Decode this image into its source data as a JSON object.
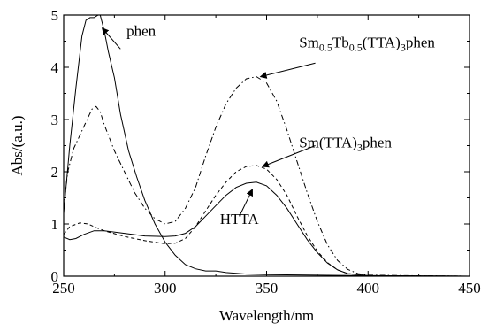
{
  "chart_data": {
    "type": "line",
    "title": "",
    "xlabel": "Wavelength/nm",
    "ylabel": "Abs/(a.u.)",
    "xlim": [
      250,
      450
    ],
    "ylim": [
      0,
      5
    ],
    "x_ticks": [
      250,
      300,
      350,
      400,
      450
    ],
    "y_ticks": [
      0,
      1,
      2,
      3,
      4,
      5
    ],
    "grid": false,
    "legend": "none",
    "series": [
      {
        "name": "phen",
        "style": "solid",
        "points": [
          [
            250,
            1.2
          ],
          [
            253,
            2.5
          ],
          [
            256,
            3.6
          ],
          [
            259,
            4.6
          ],
          [
            261,
            4.9
          ],
          [
            263,
            4.95
          ],
          [
            265,
            4.95
          ],
          [
            267,
            5.0
          ],
          [
            268,
            5.0
          ],
          [
            270,
            4.7
          ],
          [
            272,
            4.3
          ],
          [
            275,
            3.8
          ],
          [
            278,
            3.1
          ],
          [
            282,
            2.4
          ],
          [
            286,
            1.9
          ],
          [
            290,
            1.45
          ],
          [
            295,
            1.0
          ],
          [
            300,
            0.65
          ],
          [
            305,
            0.4
          ],
          [
            310,
            0.22
          ],
          [
            315,
            0.14
          ],
          [
            320,
            0.1
          ],
          [
            325,
            0.1
          ],
          [
            330,
            0.07
          ],
          [
            340,
            0.04
          ],
          [
            350,
            0.03
          ],
          [
            370,
            0.02
          ],
          [
            400,
            0.01
          ],
          [
            450,
            0.0
          ]
        ]
      },
      {
        "name": "Sm0.5Tb0.5(TTA)3phen",
        "label_main": "Sm",
        "label_sub1": "0.5",
        "label_mid": "Tb",
        "label_sub2": "0.5",
        "label_mid2": "(TTA)",
        "label_sub3": "3",
        "label_end": "phen",
        "style": "dashdot",
        "points": [
          [
            250,
            1.3
          ],
          [
            252,
            2.0
          ],
          [
            255,
            2.45
          ],
          [
            258,
            2.7
          ],
          [
            261,
            2.95
          ],
          [
            264,
            3.2
          ],
          [
            266,
            3.25
          ],
          [
            268,
            3.15
          ],
          [
            270,
            2.9
          ],
          [
            275,
            2.4
          ],
          [
            280,
            2.0
          ],
          [
            285,
            1.6
          ],
          [
            290,
            1.3
          ],
          [
            295,
            1.1
          ],
          [
            300,
            1.0
          ],
          [
            305,
            1.05
          ],
          [
            310,
            1.3
          ],
          [
            315,
            1.7
          ],
          [
            320,
            2.3
          ],
          [
            325,
            2.85
          ],
          [
            330,
            3.3
          ],
          [
            335,
            3.6
          ],
          [
            340,
            3.78
          ],
          [
            345,
            3.82
          ],
          [
            350,
            3.7
          ],
          [
            355,
            3.35
          ],
          [
            360,
            2.8
          ],
          [
            365,
            2.2
          ],
          [
            370,
            1.6
          ],
          [
            375,
            1.05
          ],
          [
            380,
            0.6
          ],
          [
            385,
            0.3
          ],
          [
            390,
            0.13
          ],
          [
            395,
            0.05
          ],
          [
            400,
            0.02
          ],
          [
            420,
            0.01
          ],
          [
            450,
            0.0
          ]
        ]
      },
      {
        "name": "Sm(TTA)3phen",
        "label_main": "Sm(TTA)",
        "label_sub": "3",
        "label_end": "phen",
        "style": "dashed",
        "points": [
          [
            250,
            0.8
          ],
          [
            253,
            0.95
          ],
          [
            258,
            1.02
          ],
          [
            262,
            1.0
          ],
          [
            266,
            0.93
          ],
          [
            270,
            0.87
          ],
          [
            280,
            0.76
          ],
          [
            290,
            0.68
          ],
          [
            300,
            0.62
          ],
          [
            305,
            0.63
          ],
          [
            310,
            0.72
          ],
          [
            315,
            0.95
          ],
          [
            320,
            1.25
          ],
          [
            325,
            1.55
          ],
          [
            330,
            1.8
          ],
          [
            335,
            2.0
          ],
          [
            340,
            2.1
          ],
          [
            345,
            2.12
          ],
          [
            350,
            2.05
          ],
          [
            355,
            1.85
          ],
          [
            360,
            1.55
          ],
          [
            365,
            1.15
          ],
          [
            370,
            0.78
          ],
          [
            375,
            0.48
          ],
          [
            380,
            0.26
          ],
          [
            385,
            0.12
          ],
          [
            390,
            0.05
          ],
          [
            400,
            0.01
          ],
          [
            450,
            0.0
          ]
        ]
      },
      {
        "name": "HTTA",
        "style": "solid",
        "points": [
          [
            250,
            0.75
          ],
          [
            253,
            0.7
          ],
          [
            256,
            0.72
          ],
          [
            260,
            0.8
          ],
          [
            265,
            0.87
          ],
          [
            270,
            0.87
          ],
          [
            280,
            0.82
          ],
          [
            290,
            0.77
          ],
          [
            300,
            0.76
          ],
          [
            305,
            0.77
          ],
          [
            310,
            0.82
          ],
          [
            315,
            0.95
          ],
          [
            320,
            1.15
          ],
          [
            325,
            1.35
          ],
          [
            330,
            1.55
          ],
          [
            335,
            1.7
          ],
          [
            340,
            1.78
          ],
          [
            345,
            1.8
          ],
          [
            350,
            1.73
          ],
          [
            355,
            1.55
          ],
          [
            360,
            1.3
          ],
          [
            365,
            1.0
          ],
          [
            370,
            0.7
          ],
          [
            375,
            0.45
          ],
          [
            380,
            0.25
          ],
          [
            385,
            0.12
          ],
          [
            390,
            0.05
          ],
          [
            400,
            0.01
          ],
          [
            450,
            0.0
          ]
        ]
      }
    ],
    "annotations": [
      {
        "series": "phen",
        "text": "phen",
        "arrow_from": [
          278,
          4.35
        ],
        "arrow_to": [
          269,
          4.75
        ],
        "label_at": [
          281,
          4.6
        ]
      },
      {
        "series": "Sm0.5Tb0.5(TTA)3phen",
        "arrow_from": [
          374,
          4.08
        ],
        "arrow_to": [
          347,
          3.82
        ],
        "label_at": [
          366,
          4.38
        ]
      },
      {
        "series": "Sm(TTA)3phen",
        "arrow_from": [
          374,
          2.5
        ],
        "arrow_to": [
          348,
          2.1
        ],
        "label_at": [
          366,
          2.47
        ]
      },
      {
        "series": "HTTA",
        "text": "HTTA",
        "arrow_from": [
          337,
          1.18
        ],
        "arrow_to": [
          343,
          1.66
        ],
        "label_at": [
          327,
          1.0
        ]
      }
    ]
  }
}
